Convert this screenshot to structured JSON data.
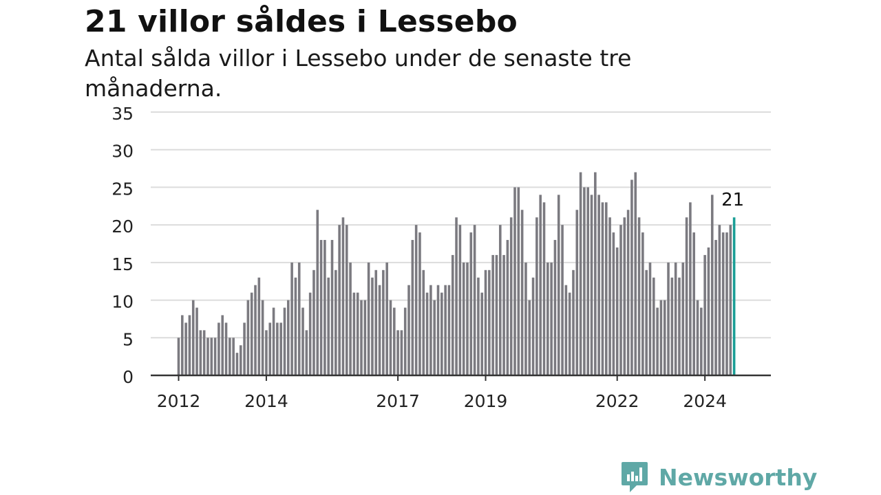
{
  "header": {
    "title": "21 villor såldes i Lessebo",
    "subtitle": "Antal sålda villor i Lessebo under de senaste tre månaderna."
  },
  "brand": {
    "name": "Newsworthy",
    "icon": "newsworthy-logo-icon",
    "color": "#5fa8a6"
  },
  "colors": {
    "bar": "#7b7a80",
    "highlight": "#1a9e96",
    "grid": "#dcdcdc",
    "axis": "#333333"
  },
  "chart_data": {
    "type": "bar",
    "ylim": [
      0,
      35
    ],
    "yticks": [
      0,
      5,
      10,
      15,
      20,
      25,
      30,
      35
    ],
    "x_tick_labels": [
      "2012",
      "2014",
      "2017",
      "2019",
      "2022",
      "2024"
    ],
    "start_month": "2012-01",
    "values": [
      5,
      8,
      7,
      8,
      10,
      9,
      6,
      6,
      5,
      5,
      5,
      7,
      8,
      7,
      5,
      5,
      3,
      4,
      7,
      10,
      11,
      12,
      13,
      10,
      6,
      7,
      9,
      7,
      7,
      9,
      10,
      15,
      13,
      15,
      9,
      6,
      11,
      14,
      22,
      18,
      18,
      13,
      18,
      14,
      20,
      21,
      20,
      15,
      11,
      11,
      10,
      10,
      15,
      13,
      14,
      12,
      14,
      15,
      10,
      9,
      6,
      6,
      9,
      12,
      18,
      20,
      19,
      14,
      11,
      12,
      10,
      12,
      11,
      12,
      12,
      16,
      21,
      20,
      15,
      15,
      19,
      20,
      13,
      11,
      14,
      14,
      16,
      16,
      20,
      16,
      18,
      21,
      25,
      25,
      22,
      15,
      10,
      13,
      21,
      24,
      23,
      15,
      15,
      18,
      24,
      20,
      12,
      11,
      14,
      22,
      27,
      25,
      25,
      24,
      27,
      24,
      23,
      23,
      21,
      19,
      17,
      20,
      21,
      22,
      26,
      27,
      21,
      19,
      14,
      15,
      13,
      9,
      10,
      10,
      15,
      13,
      15,
      13,
      15,
      21,
      23,
      19,
      10,
      9,
      16,
      17,
      24,
      18,
      20,
      19,
      19,
      20,
      21
    ],
    "highlight_last": true,
    "annotation": "21"
  }
}
